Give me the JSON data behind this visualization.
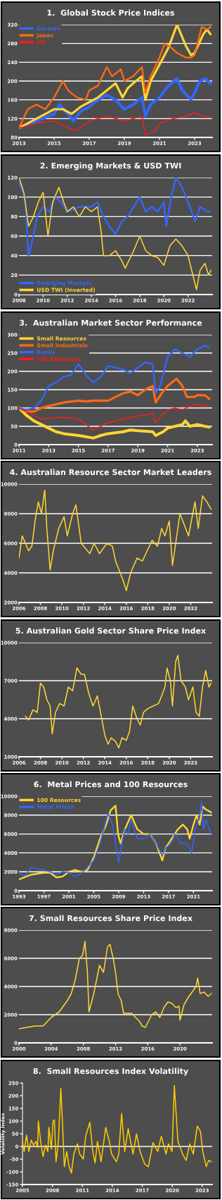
{
  "chart_data": [
    {
      "type": "line",
      "title": "1.  Global Stock Price Indices",
      "xlim": [
        2013,
        2024
      ],
      "xticks": [
        2013,
        2015,
        2017,
        2019,
        2021,
        2023
      ],
      "ylim": [
        80,
        320
      ],
      "yticks": [
        80,
        120,
        160,
        200,
        240,
        280,
        320
      ],
      "grid": "y",
      "legend": "top left",
      "series": [
        {
          "name": "German",
          "color": "#3366ff",
          "x": [
            2013,
            2014,
            2015,
            2015.3,
            2015.8,
            2016.1,
            2016.5,
            2017,
            2017.5,
            2018,
            2018.5,
            2019,
            2019.5,
            2020,
            2020.2,
            2020.5,
            2021,
            2021.5,
            2022,
            2022.3,
            2022.8,
            2023,
            2023.3,
            2023.6,
            2023.9
          ],
          "values": [
            100,
            115,
            130,
            150,
            130,
            115,
            135,
            145,
            160,
            170,
            160,
            140,
            150,
            165,
            125,
            150,
            165,
            190,
            205,
            180,
            160,
            175,
            200,
            205,
            195
          ]
        },
        {
          "color": "#ffd633",
          "x": [
            2013,
            2014,
            2015,
            2015.5,
            2016,
            2016.5,
            2017,
            2017.5,
            2018,
            2018.5,
            2018.9,
            2019.2,
            2019.5,
            2020,
            2020.2,
            2020.5,
            2021,
            2021.5,
            2022,
            2022.5,
            2022.8,
            2023,
            2023.5,
            2023.7,
            2023.9
          ],
          "values": [
            100,
            120,
            140,
            140,
            130,
            145,
            155,
            165,
            180,
            195,
            165,
            185,
            195,
            210,
            160,
            200,
            235,
            270,
            320,
            275,
            255,
            260,
            300,
            310,
            300
          ]
        },
        {
          "name": "Japan",
          "color": "#ff6a13",
          "x": [
            2013,
            2013.5,
            2014,
            2014.5,
            2015,
            2015.5,
            2015.8,
            2016.3,
            2016.8,
            2017,
            2017.5,
            2018,
            2018.3,
            2018.8,
            2019,
            2019.5,
            2020,
            2020.2,
            2020.5,
            2021,
            2021.3,
            2021.7,
            2022,
            2022.5,
            2022.8,
            2023,
            2023.4,
            2023.7,
            2023.9
          ],
          "values": [
            100,
            140,
            150,
            140,
            165,
            200,
            180,
            165,
            160,
            180,
            190,
            230,
            210,
            225,
            200,
            210,
            230,
            175,
            210,
            250,
            280,
            270,
            260,
            250,
            250,
            255,
            315,
            310,
            315
          ]
        },
        {
          "name": "UK",
          "color": "#ff1a1a",
          "x": [
            2013,
            2014,
            2015,
            2015.8,
            2016.3,
            2017,
            2018,
            2018.5,
            2019,
            2020,
            2020.2,
            2020.8,
            2021,
            2021.8,
            2022.5,
            2023,
            2023.5,
            2023.9
          ],
          "values": [
            100,
            110,
            115,
            100,
            95,
            115,
            125,
            120,
            115,
            125,
            85,
            95,
            110,
            120,
            125,
            132,
            125,
            123
          ]
        }
      ]
    },
    {
      "type": "line",
      "title": "2. Emerging Markets & USD TWI",
      "xlim": [
        2008,
        2024
      ],
      "xticks": [
        2008,
        2010,
        2012,
        2014,
        2016,
        2018,
        2020,
        2022
      ],
      "ylim": [
        0,
        120
      ],
      "yticks": [
        0,
        20,
        40,
        60,
        80,
        100,
        120
      ],
      "grid": "y",
      "legend": "bottom left",
      "series": [
        {
          "name": "Emerging Markets",
          "color": "#3366ff",
          "x": [
            2008,
            2008.5,
            2008.8,
            2009.2,
            2009.5,
            2010,
            2010.5,
            2011,
            2011.5,
            2012,
            2013,
            2014,
            2014.5,
            2015,
            2015.5,
            2016,
            2016.5,
            2017,
            2018,
            2018.5,
            2019,
            2019.5,
            2020,
            2020.2,
            2020.6,
            2021,
            2021.5,
            2022,
            2022.6,
            2023,
            2023.6,
            2023.8
          ],
          "values": [
            115,
            100,
            40,
            60,
            80,
            90,
            85,
            100,
            95,
            85,
            90,
            90,
            95,
            80,
            70,
            62,
            75,
            80,
            100,
            85,
            90,
            85,
            95,
            70,
            100,
            120,
            110,
            95,
            75,
            90,
            85,
            85
          ]
        },
        {
          "name": "USD TWI (Inverted)",
          "color": "#ffd633",
          "x": [
            2008,
            2008.4,
            2008.8,
            2009.2,
            2009.6,
            2010,
            2010.4,
            2010.8,
            2011.3,
            2011.7,
            2012,
            2012.5,
            2013,
            2013.5,
            2014,
            2014.5,
            2014.8,
            2015,
            2015.5,
            2016,
            2016.5,
            2016.8,
            2017.5,
            2018,
            2018.5,
            2019,
            2019.5,
            2020,
            2020.5,
            2021,
            2021.5,
            2022,
            2022.5,
            2022.7,
            2023,
            2023.4,
            2023.7,
            2023.9
          ],
          "values": [
            120,
            105,
            70,
            80,
            95,
            105,
            60,
            95,
            110,
            95,
            85,
            90,
            80,
            90,
            85,
            90,
            65,
            40,
            40,
            45,
            35,
            27,
            45,
            60,
            45,
            40,
            38,
            30,
            50,
            57,
            50,
            40,
            15,
            5,
            25,
            32,
            20,
            25
          ]
        }
      ]
    },
    {
      "type": "line",
      "title": "3.  Australian Market Sector Performance",
      "xlim": [
        2011,
        2024
      ],
      "xticks": [
        2011,
        2013,
        2015,
        2017,
        2019,
        2021,
        2023
      ],
      "ylim": [
        0,
        300
      ],
      "yticks": [
        0,
        50,
        100,
        150,
        200,
        250,
        300
      ],
      "grid": "y",
      "legend": "top left",
      "series": [
        {
          "name": "Small Resources",
          "color": "#ffd633",
          "x": [
            2011,
            2011.5,
            2012,
            2012.5,
            2013,
            2013.5,
            2014,
            2015,
            2016,
            2016.5,
            2017,
            2018,
            2018.5,
            2019,
            2020,
            2020.2,
            2020.7,
            2021,
            2021.5,
            2022,
            2022.2,
            2022.5,
            2023,
            2023.5,
            2023.8
          ],
          "values": [
            100,
            80,
            65,
            55,
            45,
            35,
            30,
            25,
            18,
            25,
            30,
            35,
            40,
            38,
            35,
            25,
            35,
            45,
            50,
            55,
            65,
            50,
            55,
            50,
            48
          ]
        },
        {
          "name": "Small Industrials",
          "color": "#ff6a13",
          "x": [
            2011,
            2011.5,
            2012,
            2012.5,
            2013,
            2014,
            2015,
            2015.5,
            2016,
            2017,
            2017.5,
            2018,
            2018.5,
            2019,
            2019.5,
            2020,
            2020.2,
            2020.6,
            2021,
            2021.6,
            2022,
            2022.3,
            2022.8,
            2023,
            2023.5,
            2023.8
          ],
          "values": [
            100,
            90,
            90,
            100,
            105,
            115,
            120,
            118,
            120,
            120,
            130,
            140,
            145,
            135,
            150,
            160,
            115,
            140,
            160,
            180,
            160,
            130,
            130,
            135,
            135,
            125
          ]
        },
        {
          "name": "Banks",
          "color": "#3366ff",
          "x": [
            2011,
            2011.5,
            2012,
            2012.5,
            2013,
            2013.5,
            2014,
            2014.5,
            2015,
            2015.5,
            2016,
            2016.5,
            2017,
            2017.5,
            2018,
            2018.5,
            2019,
            2019.5,
            2020,
            2020.2,
            2020.5,
            2021,
            2021.5,
            2022,
            2022.5,
            2023,
            2023.5,
            2023.8
          ],
          "values": [
            100,
            95,
            100,
            120,
            160,
            170,
            185,
            190,
            220,
            190,
            170,
            185,
            215,
            210,
            205,
            195,
            210,
            225,
            220,
            140,
            160,
            240,
            260,
            250,
            240,
            260,
            270,
            265
          ]
        },
        {
          "name": "100 Resources",
          "color": "#ff1a1a",
          "x": [
            2011,
            2011.5,
            2012,
            2012.5,
            2013,
            2014,
            2015,
            2015.5,
            2016,
            2016.5,
            2017,
            2018,
            2019,
            2020,
            2020.2,
            2020.6,
            2021,
            2021.5,
            2022,
            2022.5,
            2023,
            2023.5,
            2023.8
          ],
          "values": [
            100,
            90,
            80,
            70,
            72,
            75,
            70,
            55,
            40,
            50,
            60,
            70,
            78,
            85,
            60,
            80,
            95,
            100,
            95,
            105,
            110,
            105,
            105
          ]
        }
      ]
    },
    {
      "type": "line",
      "title": "4. Australian Resource Sector Market Leaders",
      "xlim": [
        2006,
        2024
      ],
      "xticks": [
        2006,
        2008,
        2010,
        2012,
        2014,
        2016,
        2018,
        2020,
        2022
      ],
      "ylim": [
        2000,
        10000
      ],
      "yticks": [
        2000,
        4000,
        6000,
        8000,
        10000
      ],
      "grid": "y",
      "series": [
        {
          "color": "#ffd633",
          "x": [
            2006,
            2006.3,
            2006.9,
            2007.2,
            2007.5,
            2007.8,
            2008.1,
            2008.4,
            2008.6,
            2008.9,
            2009.2,
            2009.7,
            2010.2,
            2010.5,
            2011,
            2011.3,
            2011.8,
            2012.6,
            2013,
            2013.5,
            2014.2,
            2014.7,
            2015,
            2015.7,
            2016,
            2016.4,
            2017,
            2017.5,
            2018.4,
            2018.9,
            2019.3,
            2019.6,
            2020,
            2020.3,
            2021,
            2021.8,
            2022.4,
            2022.7,
            2023.1,
            2023.5,
            2023.9
          ],
          "values": [
            5000,
            6500,
            5500,
            5800,
            7500,
            8800,
            8000,
            9600,
            7000,
            4200,
            5500,
            7000,
            7800,
            6500,
            8000,
            8600,
            6000,
            5300,
            6000,
            5300,
            6000,
            5800,
            4800,
            3500,
            2800,
            4000,
            5000,
            4800,
            6200,
            5800,
            7000,
            6500,
            7500,
            4500,
            8000,
            6500,
            8800,
            7000,
            9200,
            8800,
            8300
          ]
        }
      ]
    },
    {
      "type": "line",
      "title": "5. Australian Gold Sector Share Price Index",
      "xlim": [
        2006,
        2024
      ],
      "xticks": [
        2006,
        2008,
        2010,
        2012,
        2014,
        2016,
        2018,
        2020,
        2022
      ],
      "ylim": [
        1000,
        10000
      ],
      "yticks": [
        1000,
        4000,
        7000,
        10000
      ],
      "grid": "y",
      "series": [
        {
          "color": "#ffd633",
          "x": [
            2006.6,
            2006.9,
            2007.3,
            2007.7,
            2008,
            2008.3,
            2008.6,
            2008.9,
            2009.1,
            2009.4,
            2009.8,
            2010.2,
            2010.6,
            2011,
            2011.4,
            2011.8,
            2012.1,
            2012.5,
            2012.9,
            2013.3,
            2013.6,
            2014,
            2014.3,
            2014.6,
            2015,
            2015.3,
            2015.6,
            2016,
            2016.3,
            2016.6,
            2017,
            2017.3,
            2017.6,
            2018,
            2018.5,
            2019,
            2019.3,
            2019.6,
            2019.8,
            2020.1,
            2020.3,
            2020.6,
            2020.8,
            2021.1,
            2021.5,
            2021.8,
            2022.2,
            2022.5,
            2022.8,
            2023.1,
            2023.4,
            2023.7,
            2023.9
          ],
          "values": [
            4200,
            3900,
            4700,
            4500,
            6800,
            6500,
            5500,
            5000,
            2800,
            4500,
            5200,
            5000,
            6500,
            6200,
            8000,
            7500,
            7500,
            6000,
            5000,
            5800,
            4500,
            2700,
            2000,
            2500,
            2200,
            1700,
            2500,
            2300,
            3000,
            5000,
            4000,
            3500,
            4500,
            4800,
            5000,
            5200,
            5800,
            6500,
            8000,
            7000,
            5000,
            8500,
            9000,
            7000,
            6500,
            5500,
            6500,
            4500,
            4200,
            6500,
            7800,
            6500,
            6800
          ]
        }
      ]
    },
    {
      "type": "line",
      "title": "6.  Metal Prices and 100 Resources",
      "xlim": [
        1993,
        2024
      ],
      "xticks": [
        1993,
        1997,
        2001,
        2005,
        2009,
        2013,
        2017,
        2021
      ],
      "ylim": [
        0,
        10000
      ],
      "yticks": [
        0,
        2000,
        4000,
        6000,
        8000,
        10000
      ],
      "grid": "y",
      "legend": "top left",
      "series": [
        {
          "name": "100 Resources",
          "color": "#ffd633",
          "x": [
            1993,
            1995,
            1997,
            1998,
            1999,
            2000,
            2001,
            2002,
            2003,
            2004,
            2005,
            2006,
            2007,
            2007.7,
            2008.5,
            2008.9,
            2009.3,
            2010,
            2011,
            2012,
            2013,
            2014,
            2015,
            2016,
            2016.5,
            2017.5,
            2018.5,
            2019.3,
            2020,
            2020.4,
            2021,
            2021.5,
            2022,
            2022.5,
            2023,
            2023.8
          ],
          "values": [
            1200,
            1700,
            1900,
            1900,
            1400,
            1500,
            2000,
            2200,
            2000,
            2200,
            3500,
            5500,
            7000,
            8500,
            9000,
            6000,
            5000,
            6500,
            8000,
            6500,
            6000,
            6000,
            5000,
            3200,
            4500,
            5500,
            6500,
            7000,
            6500,
            5500,
            7000,
            8000,
            7000,
            8900,
            8600,
            8300
          ]
        },
        {
          "name": "Metal Prices",
          "color": "#3366ff",
          "x": [
            1993,
            1994,
            1995,
            1996,
            1997,
            1998,
            1999,
            2000,
            2001,
            2002,
            2003,
            2004,
            2005,
            2006,
            2007,
            2007.3,
            2008,
            2009,
            2009.5,
            2010,
            2010.5,
            2011,
            2012,
            2013,
            2014,
            2015,
            2016,
            2016.5,
            2017.5,
            2018,
            2019,
            2020,
            2020.7,
            2021.3,
            2022,
            2022.3,
            2022.6,
            2023,
            2023.8
          ],
          "values": [
            1800,
            1600,
            2500,
            2300,
            2200,
            2000,
            1700,
            2000,
            1900,
            1500,
            1800,
            2500,
            3200,
            5000,
            7500,
            8200,
            7000,
            3000,
            5000,
            6500,
            6000,
            7500,
            5500,
            5500,
            6000,
            5000,
            3700,
            4500,
            5000,
            6000,
            5000,
            5000,
            4000,
            6500,
            8000,
            9500,
            6500,
            7500,
            6000
          ]
        }
      ]
    },
    {
      "type": "line",
      "title": "7. Small Resources Share Price Index",
      "xlim": [
        2000,
        2024
      ],
      "xticks": [
        2000,
        2004,
        2008,
        2012,
        2016,
        2020
      ],
      "ylim": [
        0,
        8000
      ],
      "yticks": [
        0,
        2000,
        4000,
        6000,
        8000
      ],
      "grid": "y",
      "series": [
        {
          "color": "#ffd633",
          "x": [
            2000,
            2001,
            2002,
            2003,
            2004,
            2005,
            2006,
            2006.5,
            2007,
            2007.5,
            2007.9,
            2008.2,
            2008.5,
            2008.7,
            2009.3,
            2010,
            2010.5,
            2011,
            2011.3,
            2011.7,
            2012,
            2012.3,
            2012.7,
            2013,
            2014,
            2014.5,
            2015,
            2015.3,
            2015.7,
            2016.5,
            2017,
            2017.5,
            2018,
            2018.5,
            2019,
            2019.5,
            2019.9,
            2020,
            2020.5,
            2021,
            2021.5,
            2022,
            2022.2,
            2022.5,
            2023,
            2023.5,
            2023.9
          ],
          "values": [
            1000,
            1100,
            1200,
            1200,
            1800,
            2200,
            3000,
            3500,
            4500,
            6000,
            6200,
            7200,
            5000,
            2200,
            3500,
            5500,
            5000,
            6800,
            7000,
            6000,
            5000,
            3500,
            3000,
            2100,
            2100,
            1800,
            1500,
            1200,
            1100,
            2000,
            2200,
            1800,
            2500,
            2900,
            2800,
            2500,
            2600,
            1600,
            2700,
            3200,
            3600,
            4000,
            4600,
            3500,
            3600,
            3300,
            3500
          ]
        }
      ]
    },
    {
      "type": "line",
      "title": "8.  Small Resources Index Volatility",
      "ylabel": "Volatility Index",
      "xlim": [
        2005,
        2024
      ],
      "xticks": [
        2005,
        2008,
        2011,
        2014,
        2017,
        2020,
        2023
      ],
      "ylim": [
        -150,
        250
      ],
      "yticks": [
        -150,
        -100,
        -50,
        0,
        50,
        100,
        150,
        200,
        250
      ],
      "grid": false,
      "ref_lines": [
        {
          "axis": "y",
          "value": 0,
          "color": "#ffffff"
        }
      ],
      "series": [
        {
          "color": "#ffcc00",
          "x": [
            2005.0,
            2005.17,
            2005.4,
            2005.64,
            2005.88,
            2006.11,
            2006.35,
            2006.52,
            2006.59,
            2006.82,
            2007.06,
            2007.3,
            2007.54,
            2007.65,
            2007.89,
            2008.06,
            2008.2,
            2008.36,
            2008.6,
            2008.84,
            2009.0,
            2009.19,
            2009.43,
            2009.67,
            2009.9,
            2010.14,
            2010.5,
            2010.73,
            2011.09,
            2011.33,
            2011.75,
            2012.04,
            2012.27,
            2012.51,
            2012.87,
            2013.34,
            2013.7,
            2013.93,
            2014.41,
            2014.64,
            2014.93,
            2015.24,
            2015.59,
            2016.07,
            2016.42,
            2016.78,
            2017.25,
            2017.61,
            2018.08,
            2018.55,
            2018.91,
            2019.38,
            2019.62,
            2019.98,
            2020.21,
            2020.57,
            2021.04,
            2021.4,
            2021.75,
            2022.11,
            2022.51,
            2022.82,
            2023.06,
            2023.41,
            2023.65,
            2023.89
          ],
          "values": [
            20,
            -20,
            45,
            -20,
            25,
            5,
            20,
            -5,
            100,
            20,
            -40,
            5,
            -20,
            75,
            -10,
            100,
            105,
            -60,
            20,
            230,
            100,
            -80,
            -20,
            -80,
            -105,
            -30,
            10,
            -30,
            -50,
            40,
            95,
            -20,
            -65,
            20,
            -60,
            75,
            20,
            -30,
            -60,
            -30,
            130,
            -20,
            70,
            -30,
            50,
            -20,
            -70,
            -80,
            15,
            -20,
            40,
            -30,
            10,
            -20,
            240,
            20,
            -30,
            -55,
            10,
            -30,
            80,
            60,
            -20,
            -80,
            -55,
            -60
          ]
        }
      ]
    }
  ]
}
